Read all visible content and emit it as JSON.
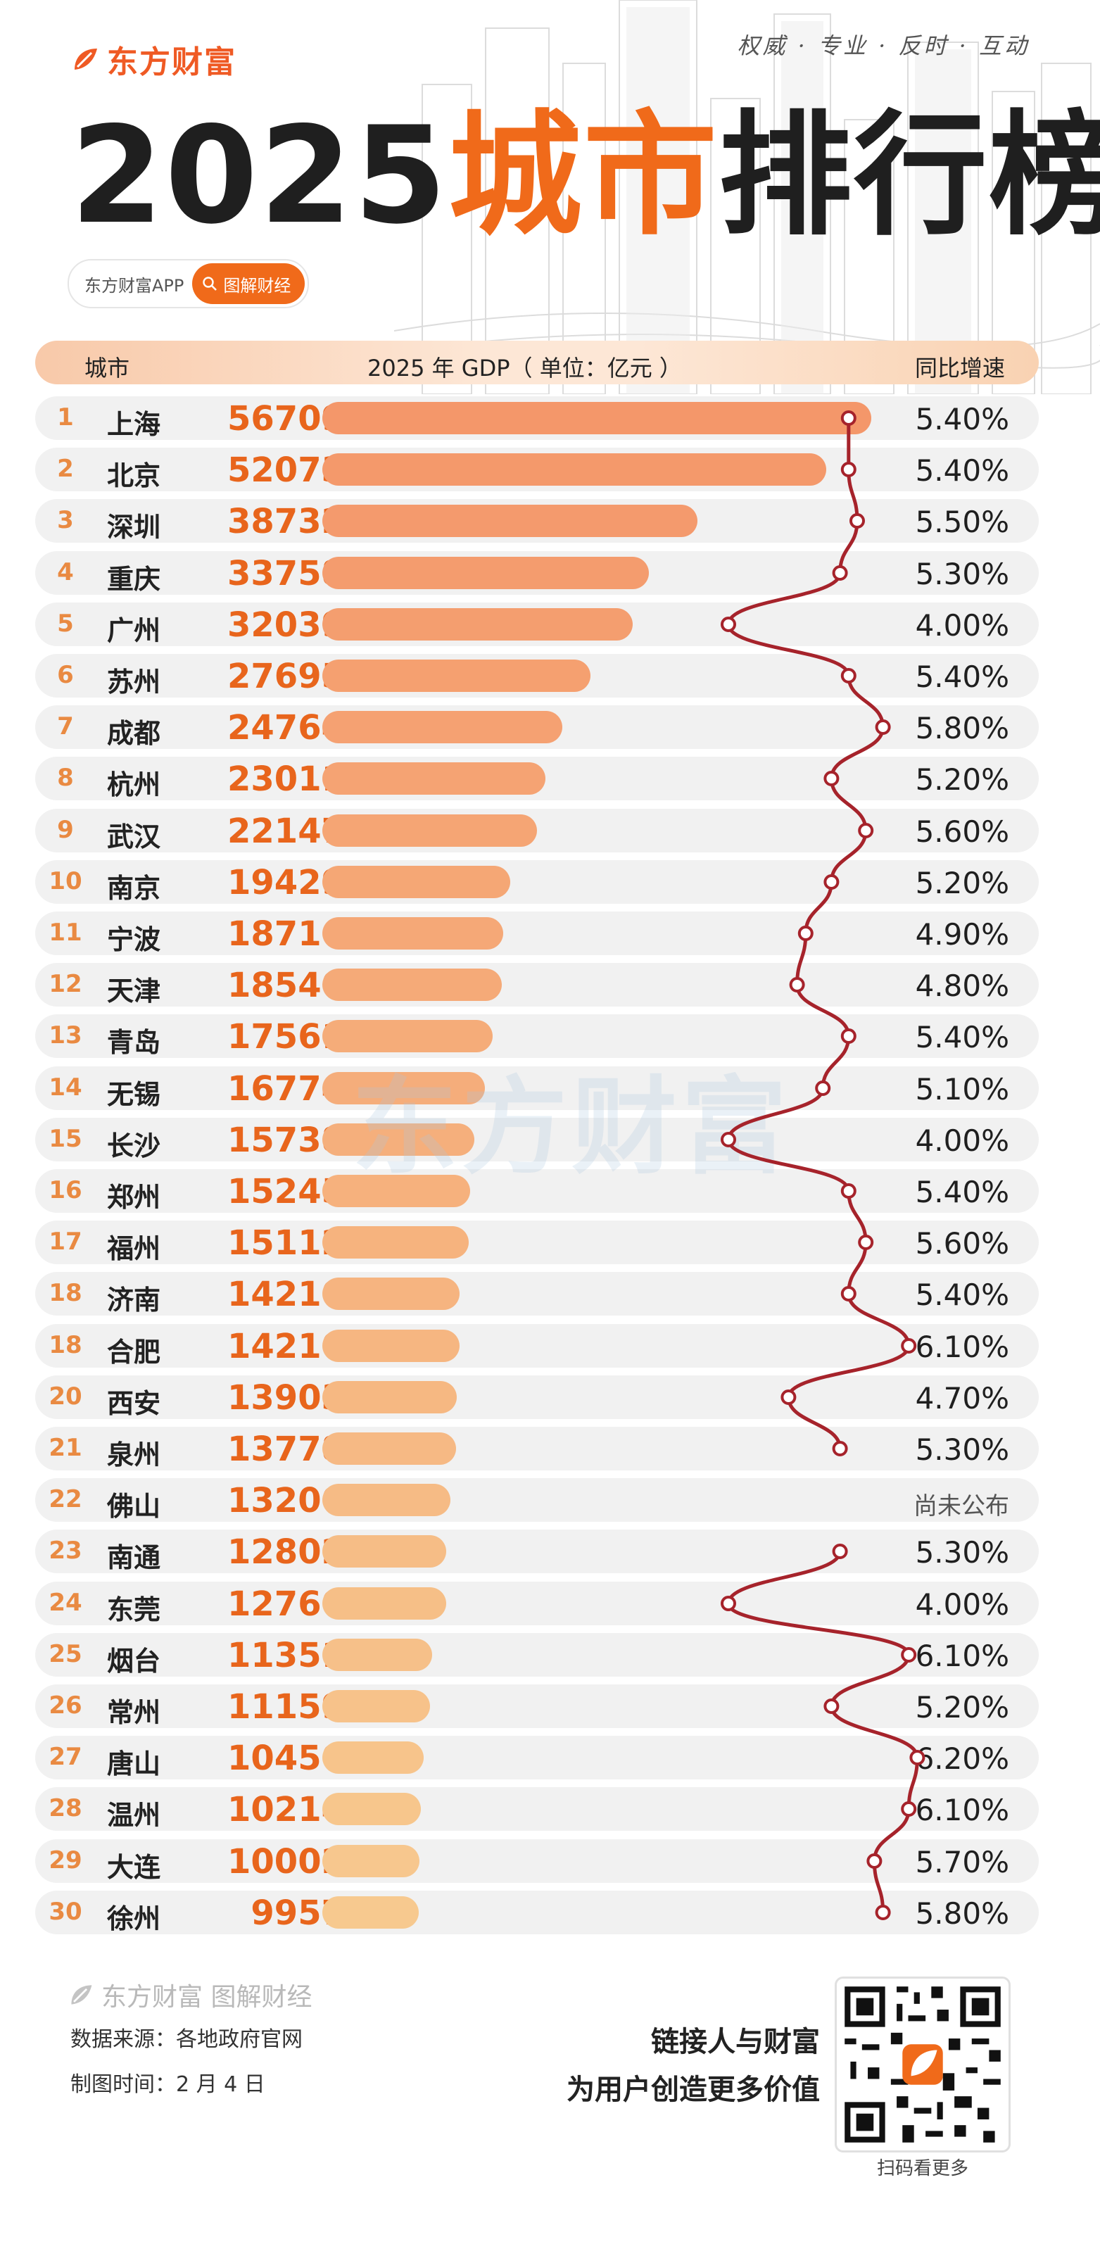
{
  "brand": {
    "name": "东方财富",
    "slogan": "权威 · 专业 · 反时 · 互动"
  },
  "title": {
    "year": "2025",
    "highlight": "城市",
    "tail": "排行榜"
  },
  "app_pill": {
    "label": "东方财富APP",
    "tag": "图解财经"
  },
  "header": {
    "city": "城市",
    "gdp": "2025 年 GDP（ 单位：亿元 ）",
    "growth": "同比增速"
  },
  "watermark": "东方财富",
  "colors": {
    "accent": "#f06a1a",
    "line": "#a6232b",
    "bar_start": "#f4976a",
    "bar_end": "#f7c98f"
  },
  "chart_data": {
    "type": "bar",
    "title": "2025城市排行榜",
    "xlabel": "",
    "ylabel": "2025 年 GDP（ 单位：亿元 ）",
    "secondary_label": "同比增速",
    "rows": [
      {
        "rank": "1",
        "city": "上海",
        "gdp": 56709,
        "growth": 5.4,
        "growth_label": "5.40%"
      },
      {
        "rank": "2",
        "city": "北京",
        "gdp": 52073,
        "growth": 5.4,
        "growth_label": "5.40%"
      },
      {
        "rank": "3",
        "city": "深圳",
        "gdp": 38732,
        "growth": 5.5,
        "growth_label": "5.50%"
      },
      {
        "rank": "4",
        "city": "重庆",
        "gdp": 33758,
        "growth": 5.3,
        "growth_label": "5.30%"
      },
      {
        "rank": "5",
        "city": "广州",
        "gdp": 32039,
        "growth": 4.0,
        "growth_label": "4.00%"
      },
      {
        "rank": "6",
        "city": "苏州",
        "gdp": 27695,
        "growth": 5.4,
        "growth_label": "5.40%"
      },
      {
        "rank": "7",
        "city": "成都",
        "gdp": 24764,
        "growth": 5.8,
        "growth_label": "5.80%"
      },
      {
        "rank": "8",
        "city": "杭州",
        "gdp": 23011,
        "growth": 5.2,
        "growth_label": "5.20%"
      },
      {
        "rank": "9",
        "city": "武汉",
        "gdp": 22147,
        "growth": 5.6,
        "growth_label": "5.60%"
      },
      {
        "rank": "10",
        "city": "南京",
        "gdp": 19429,
        "growth": 5.2,
        "growth_label": "5.20%"
      },
      {
        "rank": "11",
        "city": "宁波",
        "gdp": 18716,
        "growth": 4.9,
        "growth_label": "4.90%"
      },
      {
        "rank": "12",
        "city": "天津",
        "gdp": 18540,
        "growth": 4.8,
        "growth_label": "4.80%"
      },
      {
        "rank": "13",
        "city": "青岛",
        "gdp": 17561,
        "growth": 5.4,
        "growth_label": "5.40%"
      },
      {
        "rank": "14",
        "city": "无锡",
        "gdp": 16774,
        "growth": 5.1,
        "growth_label": "5.10%"
      },
      {
        "rank": "15",
        "city": "长沙",
        "gdp": 15738,
        "growth": 4.0,
        "growth_label": "4.00%"
      },
      {
        "rank": "16",
        "city": "郑州",
        "gdp": 15245,
        "growth": 5.4,
        "growth_label": "5.40%"
      },
      {
        "rank": "17",
        "city": "福州",
        "gdp": 15112,
        "growth": 5.6,
        "growth_label": "5.60%"
      },
      {
        "rank": "18",
        "city": "济南",
        "gdp": 14210,
        "growth": 5.4,
        "growth_label": "5.40%"
      },
      {
        "rank": "18",
        "city": "合肥",
        "gdp": 14210,
        "growth": 6.1,
        "growth_label": "6.10%"
      },
      {
        "rank": "20",
        "city": "西安",
        "gdp": 13903,
        "growth": 4.7,
        "growth_label": "4.70%"
      },
      {
        "rank": "21",
        "city": "泉州",
        "gdp": 13778,
        "growth": 5.3,
        "growth_label": "5.30%"
      },
      {
        "rank": "22",
        "city": "佛山",
        "gdp": 13200,
        "growth": null,
        "growth_label": "尚未公布"
      },
      {
        "rank": "23",
        "city": "南通",
        "gdp": 12802,
        "growth": 5.3,
        "growth_label": "5.30%"
      },
      {
        "rank": "24",
        "city": "东莞",
        "gdp": 12760,
        "growth": 4.0,
        "growth_label": "4.00%"
      },
      {
        "rank": "25",
        "city": "烟台",
        "gdp": 11351,
        "growth": 6.1,
        "growth_label": "6.10%"
      },
      {
        "rank": "26",
        "city": "常州",
        "gdp": 11159,
        "growth": 5.2,
        "growth_label": "5.20%"
      },
      {
        "rank": "27",
        "city": "唐山",
        "gdp": 10450,
        "growth": 6.2,
        "growth_label": "6.20%"
      },
      {
        "rank": "28",
        "city": "温州",
        "gdp": 10214,
        "growth": 6.1,
        "growth_label": "6.10%"
      },
      {
        "rank": "29",
        "city": "大连",
        "gdp": 10002,
        "growth": 5.7,
        "growth_label": "5.70%"
      },
      {
        "rank": "30",
        "city": "徐州",
        "gdp": 9957,
        "growth": 5.8,
        "growth_label": "5.80%"
      }
    ]
  },
  "footer": {
    "brand": "东方财富 图解财经",
    "source": "数据来源：各地政府官网",
    "date": "制图时间：2 月 4 日",
    "tagline1": "链接人与财富",
    "tagline2": "为用户创造更多价值",
    "qr_label": "扫码看更多"
  }
}
